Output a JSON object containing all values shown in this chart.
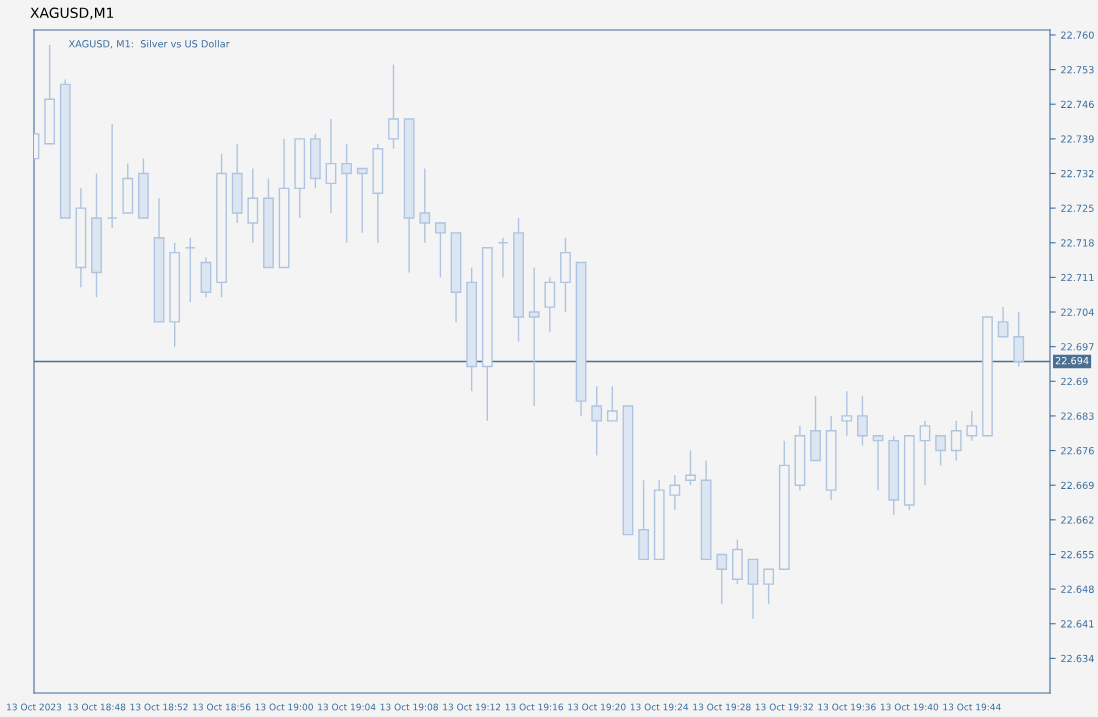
{
  "chart_data": {
    "type": "candlestick",
    "title": "XAGUSD,M1",
    "subtitle": "XAGUSD, M1:  Silver vs US Dollar",
    "color": "#aec4e0",
    "x": [
      "2023-10-13T18:44",
      "2023-10-13T18:45",
      "2023-10-13T18:46",
      "2023-10-13T18:47",
      "2023-10-13T18:48",
      "2023-10-13T18:49",
      "2023-10-13T18:50",
      "2023-10-13T18:51",
      "2023-10-13T18:52",
      "2023-10-13T18:53",
      "2023-10-13T18:54",
      "2023-10-13T18:55",
      "2023-10-13T18:56",
      "2023-10-13T18:57",
      "2023-10-13T18:58",
      "2023-10-13T18:59",
      "2023-10-13T19:00",
      "2023-10-13T19:01",
      "2023-10-13T19:02",
      "2023-10-13T19:03",
      "2023-10-13T19:04",
      "2023-10-13T19:05",
      "2023-10-13T19:06",
      "2023-10-13T19:07",
      "2023-10-13T19:08",
      "2023-10-13T19:09",
      "2023-10-13T19:10",
      "2023-10-13T19:11",
      "2023-10-13T19:12",
      "2023-10-13T19:13",
      "2023-10-13T19:14",
      "2023-10-13T19:15",
      "2023-10-13T19:16",
      "2023-10-13T19:17",
      "2023-10-13T19:18",
      "2023-10-13T19:19",
      "2023-10-13T19:20",
      "2023-10-13T19:21",
      "2023-10-13T19:22",
      "2023-10-13T19:23",
      "2023-10-13T19:24",
      "2023-10-13T19:25",
      "2023-10-13T19:26",
      "2023-10-13T19:27",
      "2023-10-13T19:28",
      "2023-10-13T19:29",
      "2023-10-13T19:30",
      "2023-10-13T19:31",
      "2023-10-13T19:32",
      "2023-10-13T19:33",
      "2023-10-13T19:34",
      "2023-10-13T19:35",
      "2023-10-13T19:36",
      "2023-10-13T19:37",
      "2023-10-13T19:38",
      "2023-10-13T19:39",
      "2023-10-13T19:40",
      "2023-10-13T19:41",
      "2023-10-13T19:42",
      "2023-10-13T19:43",
      "2023-10-13T19:44",
      "2023-10-13T19:45",
      "2023-10-13T19:46",
      "2023-10-13T19:47"
    ],
    "ohlc": [
      [
        22.735,
        22.74,
        22.735,
        22.74
      ],
      [
        22.738,
        22.758,
        22.738,
        22.747
      ],
      [
        22.75,
        22.751,
        22.723,
        22.723
      ],
      [
        22.713,
        22.729,
        22.709,
        22.725
      ],
      [
        22.723,
        22.732,
        22.707,
        22.712
      ],
      [
        22.723,
        22.742,
        22.721,
        22.723
      ],
      [
        22.724,
        22.734,
        22.724,
        22.731
      ],
      [
        22.732,
        22.735,
        22.723,
        22.723
      ],
      [
        22.719,
        22.727,
        22.702,
        22.702
      ],
      [
        22.702,
        22.718,
        22.697,
        22.716
      ],
      [
        22.717,
        22.719,
        22.706,
        22.717
      ],
      [
        22.714,
        22.715,
        22.707,
        22.708
      ],
      [
        22.71,
        22.736,
        22.707,
        22.732
      ],
      [
        22.732,
        22.738,
        22.722,
        22.724
      ],
      [
        22.722,
        22.733,
        22.718,
        22.727
      ],
      [
        22.727,
        22.731,
        22.713,
        22.713
      ],
      [
        22.713,
        22.739,
        22.713,
        22.729
      ],
      [
        22.729,
        22.739,
        22.723,
        22.739
      ],
      [
        22.739,
        22.74,
        22.729,
        22.731
      ],
      [
        22.73,
        22.743,
        22.724,
        22.734
      ],
      [
        22.734,
        22.738,
        22.718,
        22.732
      ],
      [
        22.733,
        22.733,
        22.72,
        22.732
      ],
      [
        22.728,
        22.738,
        22.718,
        22.737
      ],
      [
        22.739,
        22.754,
        22.737,
        22.743
      ],
      [
        22.743,
        22.743,
        22.712,
        22.723
      ],
      [
        22.724,
        22.733,
        22.718,
        22.722
      ],
      [
        22.722,
        22.722,
        22.711,
        22.72
      ],
      [
        22.72,
        22.72,
        22.702,
        22.708
      ],
      [
        22.71,
        22.713,
        22.688,
        22.693
      ],
      [
        22.693,
        22.717,
        22.682,
        22.717
      ],
      [
        22.718,
        22.719,
        22.711,
        22.718
      ],
      [
        22.72,
        22.723,
        22.698,
        22.703
      ],
      [
        22.704,
        22.713,
        22.685,
        22.703
      ],
      [
        22.705,
        22.711,
        22.7,
        22.71
      ],
      [
        22.71,
        22.719,
        22.704,
        22.716
      ],
      [
        22.714,
        22.714,
        22.683,
        22.686
      ],
      [
        22.685,
        22.689,
        22.675,
        22.682
      ],
      [
        22.682,
        22.689,
        22.682,
        22.684
      ],
      [
        22.685,
        22.685,
        22.659,
        22.659
      ],
      [
        22.66,
        22.67,
        22.654,
        22.654
      ],
      [
        22.654,
        22.67,
        22.654,
        22.668
      ],
      [
        22.667,
        22.671,
        22.664,
        22.669
      ],
      [
        22.67,
        22.676,
        22.669,
        22.671
      ],
      [
        22.67,
        22.674,
        22.654,
        22.654
      ],
      [
        22.655,
        22.655,
        22.645,
        22.652
      ],
      [
        22.65,
        22.658,
        22.649,
        22.656
      ],
      [
        22.654,
        22.654,
        22.642,
        22.649
      ],
      [
        22.649,
        22.652,
        22.645,
        22.652
      ],
      [
        22.652,
        22.678,
        22.652,
        22.673
      ],
      [
        22.669,
        22.681,
        22.668,
        22.679
      ],
      [
        22.68,
        22.687,
        22.674,
        22.674
      ],
      [
        22.668,
        22.683,
        22.666,
        22.68
      ],
      [
        22.682,
        22.688,
        22.679,
        22.683
      ],
      [
        22.683,
        22.687,
        22.677,
        22.679
      ],
      [
        22.679,
        22.679,
        22.668,
        22.678
      ],
      [
        22.678,
        22.679,
        22.663,
        22.666
      ],
      [
        22.665,
        22.679,
        22.664,
        22.679
      ],
      [
        22.678,
        22.682,
        22.669,
        22.681
      ],
      [
        22.679,
        22.679,
        22.673,
        22.676
      ],
      [
        22.676,
        22.682,
        22.674,
        22.68
      ],
      [
        22.679,
        22.684,
        22.678,
        22.681
      ],
      [
        22.679,
        22.703,
        22.679,
        22.703
      ],
      [
        22.702,
        22.705,
        22.699,
        22.699
      ],
      [
        22.699,
        22.704,
        22.693,
        22.694
      ]
    ],
    "xlim": [
      "2023-10-13T18:44",
      "2023-10-13T19:49"
    ],
    "xticks": [
      {
        "value": "2023-10-13T18:44",
        "label": "13 Oct 2023"
      },
      {
        "value": "2023-10-13T18:48",
        "label": "13 Oct 18:48"
      },
      {
        "value": "2023-10-13T18:52",
        "label": "13 Oct 18:52"
      },
      {
        "value": "2023-10-13T18:56",
        "label": "13 Oct 18:56"
      },
      {
        "value": "2023-10-13T19:00",
        "label": "13 Oct 19:00"
      },
      {
        "value": "2023-10-13T19:04",
        "label": "13 Oct 19:04"
      },
      {
        "value": "2023-10-13T19:08",
        "label": "13 Oct 19:08"
      },
      {
        "value": "2023-10-13T19:12",
        "label": "13 Oct 19:12"
      },
      {
        "value": "2023-10-13T19:16",
        "label": "13 Oct 19:16"
      },
      {
        "value": "2023-10-13T19:20",
        "label": "13 Oct 19:20"
      },
      {
        "value": "2023-10-13T19:24",
        "label": "13 Oct 19:24"
      },
      {
        "value": "2023-10-13T19:28",
        "label": "13 Oct 19:28"
      },
      {
        "value": "2023-10-13T19:32",
        "label": "13 Oct 19:32"
      },
      {
        "value": "2023-10-13T19:36",
        "label": "13 Oct 19:36"
      },
      {
        "value": "2023-10-13T19:40",
        "label": "13 Oct 19:40"
      },
      {
        "value": "2023-10-13T19:44",
        "label": "13 Oct 19:44"
      }
    ],
    "ylim": [
      22.627,
      22.761
    ],
    "yticks": [
      22.634,
      22.641,
      22.648,
      22.655,
      22.662,
      22.669,
      22.676,
      22.683,
      22.69,
      22.697,
      22.704,
      22.711,
      22.718,
      22.725,
      22.732,
      22.739,
      22.746,
      22.753,
      {
        "value": 22.76,
        "label": "22.760"
      }
    ],
    "ref_lines": [
      {
        "axis": "y",
        "value": 22.694,
        "label": "22.694",
        "color": "#4a6f8f"
      }
    ],
    "grid": false,
    "legend": false
  }
}
